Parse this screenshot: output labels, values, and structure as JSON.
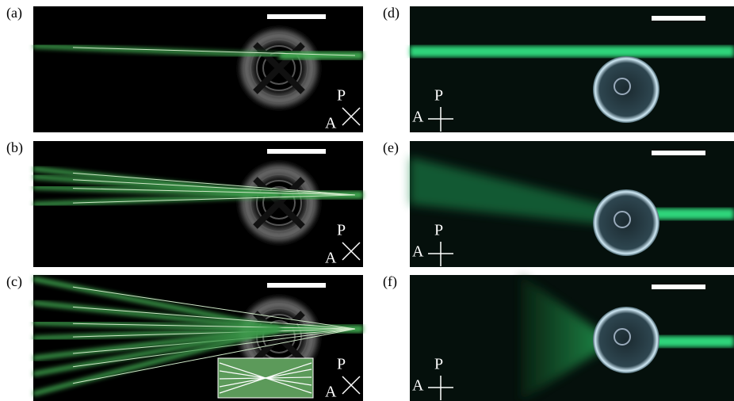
{
  "panels": [
    {
      "label": "(a)",
      "polarizer": "P",
      "analyzer": "A"
    },
    {
      "label": "(b)",
      "polarizer": "P",
      "analyzer": "A"
    },
    {
      "label": "(c)",
      "polarizer": "P",
      "analyzer": "A"
    },
    {
      "label": "(d)",
      "polarizer": "P",
      "analyzer": "A"
    },
    {
      "label": "(e)",
      "polarizer": "P",
      "analyzer": "A"
    },
    {
      "label": "(f)",
      "polarizer": "P",
      "analyzer": "A"
    }
  ]
}
